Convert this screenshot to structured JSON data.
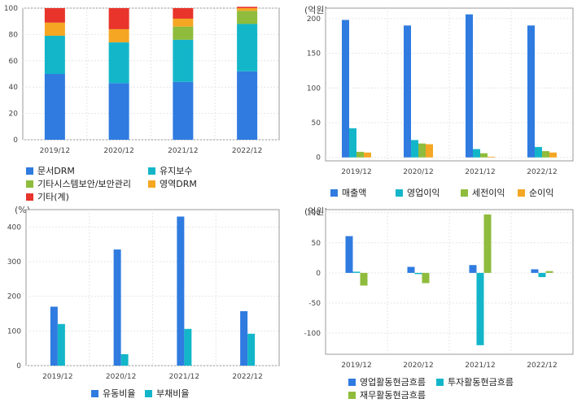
{
  "chart_data": [
    {
      "type": "bar",
      "stacked": true,
      "unit": "",
      "categories": [
        "2019/12",
        "2020/12",
        "2021/12",
        "2022/12"
      ],
      "ylim": [
        0,
        100
      ],
      "yticks": [
        "0",
        "20",
        "40",
        "60",
        "80",
        "100"
      ],
      "series": [
        {
          "name": "문서DRM",
          "color": "#2f7be0",
          "values": [
            50,
            43,
            44,
            52
          ]
        },
        {
          "name": "유지보수",
          "color": "#13b6c9",
          "values": [
            29,
            31,
            32,
            36
          ]
        },
        {
          "name": "기타시스템보안/보안관리",
          "color": "#8fbc3c",
          "values": [
            0,
            0,
            10,
            10
          ]
        },
        {
          "name": "영역DRM",
          "color": "#f5a623",
          "values": [
            10,
            10,
            6,
            2
          ]
        },
        {
          "name": "기타(계)",
          "color": "#e8342a",
          "values": [
            11,
            16,
            8,
            1
          ]
        }
      ],
      "grid": true,
      "legend": "bottom"
    },
    {
      "type": "bar",
      "unit": "(억원)",
      "categories": [
        "2019/12",
        "2020/12",
        "2021/12",
        "2022/12"
      ],
      "ylim": [
        -5,
        215
      ],
      "yticks": [
        "0",
        "50",
        "100",
        "150",
        "200"
      ],
      "series": [
        {
          "name": "매출액",
          "color": "#2f7be0",
          "values": [
            198,
            190,
            206,
            190
          ]
        },
        {
          "name": "영업이익",
          "color": "#13b6c9",
          "values": [
            42,
            25,
            12,
            15
          ]
        },
        {
          "name": "세전이익",
          "color": "#8fbc3c",
          "values": [
            8,
            20,
            6,
            9
          ]
        },
        {
          "name": "순이익",
          "color": "#f5a623",
          "values": [
            7,
            19,
            1,
            7
          ]
        }
      ],
      "grid": true,
      "legend": "bottom"
    },
    {
      "type": "bar",
      "unit": "(%)",
      "categories": [
        "2019/12",
        "2020/12",
        "2021/12",
        "2022/12"
      ],
      "ylim": [
        0,
        450
      ],
      "yticks": [
        "0",
        "100",
        "200",
        "300",
        "400"
      ],
      "series": [
        {
          "name": "유동비율",
          "color": "#2f7be0",
          "values": [
            170,
            335,
            430,
            157
          ]
        },
        {
          "name": "부채비율",
          "color": "#13b6c9",
          "values": [
            120,
            33,
            106,
            92
          ]
        }
      ],
      "grid": true,
      "legend": "bottom"
    },
    {
      "type": "bar",
      "unit": "(억원)",
      "categories": [
        "2019/12",
        "2020/12",
        "2021/12",
        "2022/12"
      ],
      "ylim": [
        -135,
        105
      ],
      "yticks": [
        "-100",
        "-50",
        "0",
        "50",
        "100"
      ],
      "series": [
        {
          "name": "영업활동현금흐름",
          "color": "#2f7be0",
          "values": [
            61,
            10,
            13,
            6
          ]
        },
        {
          "name": "투자활동현금흐름",
          "color": "#13b6c9",
          "values": [
            2,
            -2,
            -120,
            -7
          ]
        },
        {
          "name": "재무활동현금흐름",
          "color": "#8fbc3c",
          "values": [
            -21,
            -17,
            97,
            3
          ]
        }
      ],
      "grid": true,
      "legend": "bottom"
    }
  ]
}
